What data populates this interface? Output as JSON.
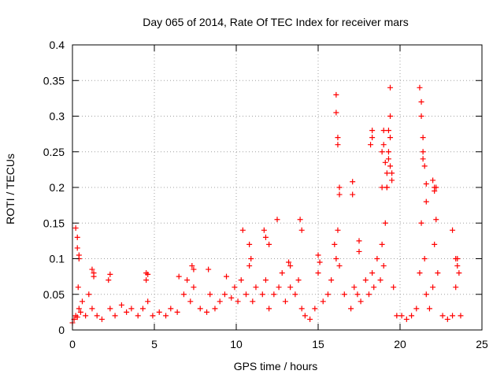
{
  "chart_data": {
    "type": "scatter",
    "title": "Day 065 of 2014, Rate Of TEC Index for receiver mars",
    "xlabel": "GPS time / hours",
    "ylabel": "ROTI / TECUs",
    "xlim": [
      0,
      25
    ],
    "ylim": [
      0,
      0.4
    ],
    "xticks": [
      0,
      5,
      10,
      15,
      20,
      25
    ],
    "xtick_labels": [
      "0",
      "5",
      "10",
      "15",
      "20",
      "25"
    ],
    "yticks": [
      0,
      0.05,
      0.1,
      0.15,
      0.2,
      0.25,
      0.3,
      0.35,
      0.4
    ],
    "ytick_labels": [
      "0",
      "0.05",
      "0.1",
      "0.15",
      "0.2",
      "0.25",
      "0.3",
      "0.35",
      "0.4"
    ],
    "grid": true,
    "marker": "+",
    "series_color": "#ff0000",
    "series": [
      {
        "name": "ROTI",
        "x": [
          0.0,
          0.1,
          0.2,
          0.3,
          0.35,
          0.4,
          0.5,
          0.6,
          0.8,
          1.0,
          1.2,
          1.3,
          1.5,
          1.8,
          2.2,
          2.3,
          2.6,
          3.0,
          3.3,
          3.6,
          4.0,
          4.3,
          4.5,
          4.6,
          4.9,
          5.3,
          5.7,
          6.0,
          6.4,
          6.8,
          7.0,
          7.2,
          7.4,
          7.8,
          8.2,
          8.4,
          8.7,
          9.0,
          9.3,
          9.7,
          9.9,
          10.1,
          10.3,
          10.6,
          10.8,
          11.0,
          11.2,
          11.6,
          11.8,
          12.0,
          12.3,
          12.6,
          12.8,
          13.0,
          13.3,
          13.6,
          13.8,
          14.0,
          14.2,
          14.5,
          14.8,
          15.0,
          15.3,
          15.6,
          15.8,
          16.0,
          16.1,
          16.2,
          16.3,
          16.6,
          17.0,
          17.2,
          17.4,
          17.6,
          17.9,
          18.1,
          18.3,
          18.4,
          18.6,
          18.8,
          18.9,
          19.0,
          19.1,
          19.2,
          19.3,
          19.4,
          19.5,
          19.6,
          19.8,
          20.1,
          20.4,
          20.7,
          21.0,
          21.2,
          21.3,
          21.4,
          21.5,
          21.6,
          21.8,
          22.0,
          22.1,
          22.2,
          22.3,
          22.6,
          22.9,
          23.2,
          23.4,
          23.5,
          23.6,
          23.7,
          0.2,
          0.3,
          0.3,
          0.4,
          0.4,
          1.2,
          1.3,
          2.3,
          4.5,
          4.6,
          6.5,
          7.3,
          7.4,
          8.3,
          9.4,
          10.4,
          10.8,
          10.9,
          11.7,
          11.8,
          12.0,
          12.5,
          13.2,
          13.3,
          13.9,
          14.0,
          15.0,
          15.1,
          16.1,
          16.1,
          16.2,
          16.2,
          16.3,
          16.3,
          17.1,
          17.1,
          17.5,
          17.5,
          18.2,
          18.3,
          18.3,
          18.9,
          18.9,
          19.0,
          19.0,
          19.1,
          19.2,
          19.2,
          19.3,
          19.3,
          19.4,
          19.4,
          19.4,
          19.5,
          21.2,
          21.3,
          21.3,
          21.4,
          21.4,
          21.5,
          21.6,
          21.6,
          22.0,
          22.1,
          22.1,
          22.2,
          23.2,
          23.4,
          23.5
        ],
        "y": [
          0.01,
          0.015,
          0.02,
          0.018,
          0.06,
          0.03,
          0.025,
          0.04,
          0.02,
          0.05,
          0.03,
          0.08,
          0.02,
          0.015,
          0.07,
          0.03,
          0.02,
          0.035,
          0.025,
          0.03,
          0.02,
          0.03,
          0.07,
          0.04,
          0.02,
          0.025,
          0.02,
          0.03,
          0.025,
          0.05,
          0.07,
          0.04,
          0.06,
          0.03,
          0.025,
          0.05,
          0.03,
          0.04,
          0.05,
          0.045,
          0.06,
          0.04,
          0.07,
          0.05,
          0.09,
          0.04,
          0.06,
          0.05,
          0.07,
          0.03,
          0.05,
          0.06,
          0.08,
          0.04,
          0.06,
          0.05,
          0.07,
          0.03,
          0.02,
          0.015,
          0.03,
          0.08,
          0.04,
          0.05,
          0.07,
          0.12,
          0.1,
          0.14,
          0.09,
          0.05,
          0.03,
          0.06,
          0.05,
          0.04,
          0.07,
          0.05,
          0.08,
          0.06,
          0.1,
          0.07,
          0.12,
          0.09,
          0.15,
          0.2,
          0.28,
          0.34,
          0.22,
          0.06,
          0.02,
          0.02,
          0.015,
          0.02,
          0.03,
          0.08,
          0.15,
          0.25,
          0.1,
          0.05,
          0.03,
          0.06,
          0.12,
          0.2,
          0.08,
          0.02,
          0.015,
          0.02,
          0.06,
          0.1,
          0.08,
          0.02,
          0.143,
          0.13,
          0.115,
          0.105,
          0.1,
          0.085,
          0.075,
          0.078,
          0.08,
          0.078,
          0.075,
          0.09,
          0.085,
          0.085,
          0.075,
          0.14,
          0.12,
          0.1,
          0.14,
          0.13,
          0.12,
          0.155,
          0.095,
          0.09,
          0.155,
          0.14,
          0.105,
          0.095,
          0.33,
          0.305,
          0.27,
          0.26,
          0.2,
          0.19,
          0.208,
          0.19,
          0.125,
          0.11,
          0.26,
          0.27,
          0.28,
          0.25,
          0.2,
          0.28,
          0.26,
          0.235,
          0.22,
          0.2,
          0.25,
          0.24,
          0.3,
          0.27,
          0.23,
          0.21,
          0.34,
          0.32,
          0.3,
          0.27,
          0.24,
          0.23,
          0.205,
          0.18,
          0.21,
          0.2,
          0.195,
          0.155,
          0.14,
          0.1,
          0.09
        ]
      }
    ]
  }
}
